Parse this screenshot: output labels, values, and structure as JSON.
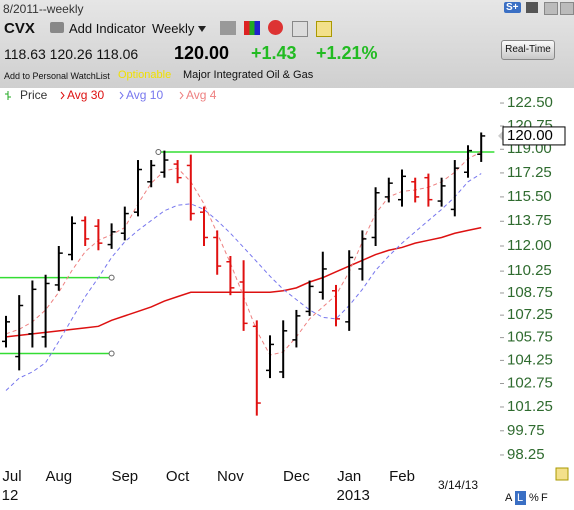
{
  "header": {
    "date_range": "8/2011--weekly",
    "badge": "S+",
    "symbol": "CVX",
    "add_indicator": "Add Indicator",
    "period": "Weekly",
    "ohlc": "118.63 120.26 118.06",
    "last": "120.00",
    "change": "+1.43",
    "change_pct": "+1.21%",
    "watchlist": "Add to Personal WatchList",
    "optionable": "Optionable",
    "industry": "Major Integrated Oil & Gas",
    "realtime": "Real-Time"
  },
  "chart_data": {
    "type": "ohlc",
    "log_scale": true,
    "categories": [
      "Jul",
      null,
      null,
      null,
      "Aug",
      null,
      null,
      null,
      null,
      "Sep",
      null,
      null,
      null,
      "Oct",
      null,
      null,
      null,
      "Nov",
      null,
      null,
      null,
      null,
      "Dec",
      null,
      null,
      null,
      "Jan",
      null,
      null,
      null,
      "Feb",
      null,
      null,
      null,
      null,
      null,
      null
    ],
    "category_years": [
      "12",
      null,
      null,
      null,
      null,
      null,
      null,
      null,
      null,
      null,
      null,
      null,
      null,
      null,
      null,
      null,
      null,
      null,
      null,
      null,
      null,
      null,
      null,
      null,
      null,
      null,
      "2013",
      null,
      null,
      null,
      null,
      null,
      null,
      null,
      null,
      null,
      null
    ],
    "date_label": "3/14/13",
    "footer_buttons": [
      "A",
      "L",
      "%",
      "F"
    ],
    "ylim": [
      96.72,
      123.66
    ],
    "yticks": [
      {
        "value": 122.5,
        "label": "122.50"
      },
      {
        "value": 120.75,
        "label": "120.75"
      },
      {
        "value": 119,
        "label": "119.00"
      },
      {
        "value": 117.25,
        "label": "117.25"
      },
      {
        "value": 115.5,
        "label": "115.50"
      },
      {
        "value": 113.75,
        "label": "113.75"
      },
      {
        "value": 112,
        "label": "112.00"
      },
      {
        "value": 110.25,
        "label": "110.25"
      },
      {
        "value": 108.75,
        "label": "108.75"
      },
      {
        "value": 107.25,
        "label": "107.25"
      },
      {
        "value": 105.75,
        "label": "105.75"
      },
      {
        "value": 104.25,
        "label": "104.25"
      },
      {
        "value": 102.75,
        "label": "102.75"
      },
      {
        "value": 101.25,
        "label": "101.25"
      },
      {
        "value": 99.75,
        "label": "99.75"
      },
      {
        "value": 98.25,
        "label": "98.25"
      }
    ],
    "series": [
      {
        "name": "Price",
        "up_color": "#000000",
        "down_color": "#e01010",
        "open": [
          105.5,
          104.5,
          106,
          105.8,
          109.3,
          111.4,
          113.8,
          113.4,
          112.1,
          112.9,
          114.4,
          116.6,
          117.3,
          117.9,
          117.8,
          114.4,
          112.6,
          110.9,
          109.5,
          106.5,
          103.6,
          103.5,
          105.6,
          107.5,
          108.8,
          108.9,
          106.8,
          110.4,
          112.6,
          115.5,
          115.3,
          116.6,
          116.9,
          115.2,
          114.6,
          117.3,
          118.63
        ],
        "high": [
          107.2,
          108.6,
          109.6,
          110,
          112,
          114.1,
          114.1,
          113.9,
          113.6,
          114.8,
          118.2,
          118.2,
          118.9,
          118.2,
          118.6,
          114.8,
          113.1,
          111.3,
          111,
          106.9,
          105.9,
          106.9,
          107.6,
          109.6,
          111.6,
          109.3,
          111.7,
          113.1,
          116.2,
          116.9,
          117.5,
          116.9,
          117.2,
          116.9,
          118.2,
          119.3,
          120.26
        ],
        "low": [
          105.1,
          103.6,
          105.1,
          105.1,
          108.9,
          111,
          112,
          111.7,
          111.8,
          112.4,
          114.1,
          116.2,
          116.9,
          116.5,
          113.8,
          112,
          110,
          108.6,
          106.2,
          100.7,
          103.1,
          103.1,
          105.1,
          107.2,
          108.3,
          106.5,
          106.2,
          109.6,
          112,
          115.1,
          114.8,
          115.1,
          114.8,
          114.8,
          114.1,
          116.9,
          118.06
        ],
        "close": [
          106.8,
          107.9,
          109,
          109.4,
          111.5,
          113.6,
          112.5,
          112.2,
          113,
          114.3,
          117.5,
          117.8,
          118.2,
          116.9,
          114.3,
          112.6,
          110.6,
          109.1,
          106.7,
          101.5,
          105.3,
          106.2,
          107.2,
          109.2,
          110.4,
          107,
          111.2,
          112.5,
          115.8,
          116.5,
          117,
          115.5,
          115.3,
          116.3,
          117.6,
          118.9,
          120
        ]
      },
      {
        "name": "Avg 30",
        "color": "#dd1111",
        "dash": false,
        "values": [
          105.8,
          105.9,
          106.0,
          106.1,
          106.2,
          106.3,
          106.4,
          106.5,
          106.9,
          107.2,
          107.5,
          107.8,
          108.2,
          108.5,
          108.8,
          108.8,
          108.8,
          108.8,
          108.8,
          108.8,
          108.8,
          108.9,
          109.1,
          109.5,
          109.8,
          110.2,
          110.6,
          111.0,
          111.4,
          111.7,
          111.9,
          112.2,
          112.4,
          112.6,
          112.9,
          113.1,
          113.3
        ]
      },
      {
        "name": "Avg 10",
        "color": "#7777ee",
        "dash": true,
        "values": [
          102.3,
          103.1,
          103.5,
          104.1,
          105.5,
          107,
          108.5,
          109.8,
          111.2,
          112.3,
          113.1,
          113.8,
          114.5,
          114.9,
          115.0,
          114.6,
          113.8,
          112.9,
          111.9,
          110.9,
          109.9,
          109.0,
          108.3,
          107.6,
          107.1,
          107.0,
          107.9,
          109.0,
          110.3,
          111.3,
          112.2,
          113.0,
          113.8,
          114.6,
          115.5,
          116.6,
          117.2
        ]
      },
      {
        "name": "Avg 4",
        "color": "#ee8080",
        "dash": true,
        "values": [
          106.0,
          106.3,
          106.8,
          107.6,
          108.8,
          110.3,
          111.6,
          112.4,
          112.8,
          113.3,
          115,
          116.5,
          117.4,
          117.6,
          116.6,
          115,
          112.9,
          110.8,
          108.5,
          106.2,
          104.6,
          104.8,
          105.8,
          107,
          107.8,
          108.6,
          110.2,
          112.3,
          114.3,
          115.5,
          115.9,
          116.0,
          116.2,
          116.6,
          117.3,
          118.3,
          118.8
        ]
      }
    ],
    "levels_color": "#33dd33",
    "levels": [
      {
        "value": 118.8,
        "start": 12,
        "end": 37
      },
      {
        "value": 109.8,
        "start": 0,
        "end": 8
      },
      {
        "value": 104.7,
        "start": 0,
        "end": 8
      }
    ]
  }
}
